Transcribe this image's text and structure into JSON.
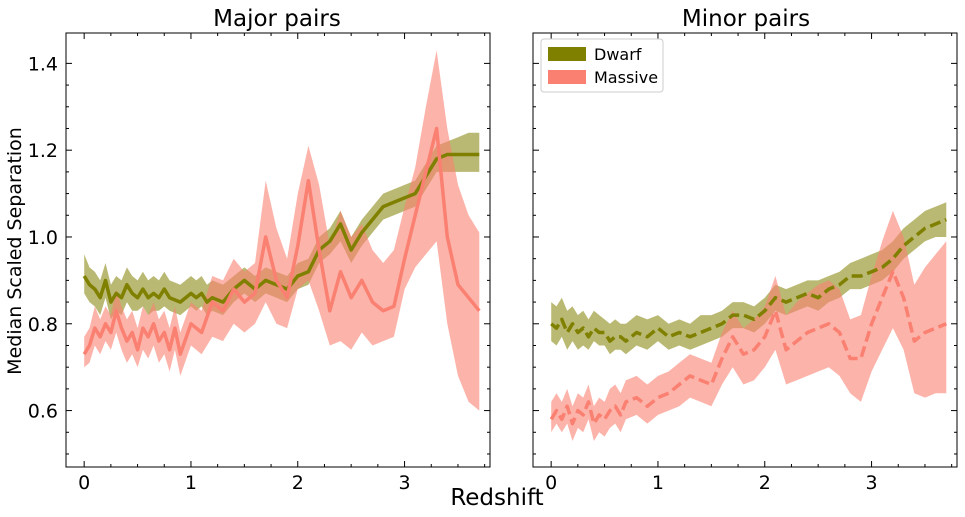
{
  "figure": {
    "xlabel_shared": "Redshift",
    "ylabel_shared": "Median Scaled Separation"
  },
  "colors": {
    "dwarf": "#808000",
    "massive": "#fa8072"
  },
  "legend": {
    "placement": "upper-left",
    "entries": [
      {
        "label": "Dwarf",
        "series": "dwarf"
      },
      {
        "label": "Massive",
        "series": "massive"
      }
    ]
  },
  "chart_data": [
    {
      "type": "line",
      "title": "Major pairs",
      "xlim": [
        -0.17,
        3.8
      ],
      "ylim": [
        0.47,
        1.47
      ],
      "xticks": [
        0,
        1,
        2,
        3
      ],
      "yticks": [
        0.6,
        0.8,
        1.0,
        1.2,
        1.4
      ],
      "line_style": "solid",
      "series": [
        {
          "name": "Dwarf",
          "key": "dwarf",
          "x": [
            0.0,
            0.05,
            0.1,
            0.15,
            0.2,
            0.25,
            0.3,
            0.35,
            0.4,
            0.45,
            0.5,
            0.55,
            0.6,
            0.65,
            0.7,
            0.75,
            0.8,
            0.9,
            1.0,
            1.05,
            1.1,
            1.15,
            1.2,
            1.3,
            1.4,
            1.5,
            1.6,
            1.7,
            1.8,
            1.9,
            2.0,
            2.1,
            2.2,
            2.3,
            2.4,
            2.5,
            2.6,
            2.7,
            2.8,
            2.9,
            3.0,
            3.1,
            3.2,
            3.3,
            3.4,
            3.5,
            3.6,
            3.7
          ],
          "y": [
            0.91,
            0.89,
            0.88,
            0.86,
            0.9,
            0.85,
            0.87,
            0.86,
            0.89,
            0.87,
            0.86,
            0.88,
            0.86,
            0.87,
            0.86,
            0.88,
            0.86,
            0.85,
            0.87,
            0.86,
            0.87,
            0.85,
            0.86,
            0.85,
            0.88,
            0.9,
            0.88,
            0.9,
            0.89,
            0.88,
            0.91,
            0.92,
            0.97,
            0.99,
            1.03,
            0.97,
            1.01,
            1.04,
            1.07,
            1.08,
            1.09,
            1.1,
            1.14,
            1.18,
            1.19,
            1.19,
            1.19,
            1.19
          ],
          "low": [
            0.87,
            0.85,
            0.84,
            0.82,
            0.86,
            0.81,
            0.83,
            0.82,
            0.85,
            0.83,
            0.83,
            0.84,
            0.82,
            0.83,
            0.83,
            0.84,
            0.83,
            0.82,
            0.84,
            0.83,
            0.84,
            0.82,
            0.83,
            0.82,
            0.85,
            0.87,
            0.85,
            0.87,
            0.86,
            0.85,
            0.88,
            0.89,
            0.94,
            0.96,
            0.99,
            0.94,
            0.98,
            1.01,
            1.04,
            1.05,
            1.06,
            1.07,
            1.11,
            1.15,
            1.15,
            1.15,
            1.15,
            1.15
          ],
          "high": [
            0.96,
            0.93,
            0.92,
            0.9,
            0.94,
            0.89,
            0.91,
            0.9,
            0.93,
            0.91,
            0.9,
            0.92,
            0.9,
            0.91,
            0.9,
            0.92,
            0.9,
            0.89,
            0.91,
            0.9,
            0.91,
            0.89,
            0.9,
            0.89,
            0.91,
            0.93,
            0.91,
            0.93,
            0.92,
            0.91,
            0.94,
            0.95,
            1.0,
            1.02,
            1.06,
            1.0,
            1.04,
            1.07,
            1.1,
            1.11,
            1.12,
            1.13,
            1.17,
            1.21,
            1.22,
            1.23,
            1.24,
            1.24
          ]
        },
        {
          "name": "Massive",
          "key": "massive",
          "x": [
            0.0,
            0.05,
            0.1,
            0.15,
            0.2,
            0.25,
            0.3,
            0.35,
            0.4,
            0.45,
            0.5,
            0.55,
            0.6,
            0.65,
            0.7,
            0.75,
            0.8,
            0.85,
            0.9,
            1.0,
            1.1,
            1.2,
            1.3,
            1.4,
            1.5,
            1.6,
            1.7,
            1.8,
            1.9,
            2.0,
            2.1,
            2.2,
            2.3,
            2.4,
            2.5,
            2.6,
            2.7,
            2.8,
            2.9,
            3.0,
            3.1,
            3.2,
            3.3,
            3.4,
            3.5,
            3.6,
            3.7
          ],
          "y": [
            0.73,
            0.75,
            0.79,
            0.77,
            0.8,
            0.78,
            0.83,
            0.79,
            0.76,
            0.78,
            0.74,
            0.79,
            0.77,
            0.8,
            0.76,
            0.78,
            0.74,
            0.79,
            0.73,
            0.8,
            0.78,
            0.85,
            0.83,
            0.88,
            0.85,
            0.87,
            1.0,
            0.9,
            0.86,
            0.98,
            1.13,
            0.97,
            0.83,
            0.92,
            0.86,
            0.9,
            0.85,
            0.83,
            0.84,
            0.95,
            1.05,
            1.15,
            1.25,
            1.0,
            0.89,
            0.86,
            0.83
          ],
          "low": [
            0.7,
            0.71,
            0.75,
            0.73,
            0.76,
            0.74,
            0.78,
            0.74,
            0.71,
            0.73,
            0.7,
            0.74,
            0.72,
            0.75,
            0.71,
            0.73,
            0.69,
            0.74,
            0.68,
            0.75,
            0.73,
            0.77,
            0.76,
            0.8,
            0.78,
            0.8,
            0.85,
            0.8,
            0.79,
            0.88,
            0.9,
            0.83,
            0.75,
            0.76,
            0.74,
            0.78,
            0.75,
            0.76,
            0.77,
            0.88,
            0.93,
            0.96,
            0.99,
            0.8,
            0.68,
            0.62,
            0.6
          ],
          "high": [
            0.77,
            0.79,
            0.84,
            0.81,
            0.84,
            0.82,
            0.88,
            0.84,
            0.81,
            0.83,
            0.79,
            0.84,
            0.82,
            0.85,
            0.81,
            0.83,
            0.79,
            0.84,
            0.78,
            0.85,
            0.83,
            0.91,
            0.9,
            0.95,
            0.92,
            0.94,
            1.13,
            1.02,
            0.95,
            1.1,
            1.21,
            1.12,
            0.98,
            1.06,
            1.0,
            1.03,
            0.97,
            0.94,
            0.97,
            1.07,
            1.16,
            1.3,
            1.43,
            1.25,
            1.12,
            1.05,
            1.01
          ]
        }
      ]
    },
    {
      "type": "line",
      "title": "Minor pairs",
      "xlim": [
        -0.17,
        3.8
      ],
      "ylim": [
        0.47,
        1.47
      ],
      "xticks": [
        0,
        1,
        2,
        3
      ],
      "yticks": [
        0.6,
        0.8,
        1.0,
        1.2,
        1.4
      ],
      "line_style": "dashed",
      "series": [
        {
          "name": "Dwarf",
          "key": "dwarf",
          "x": [
            0.0,
            0.05,
            0.1,
            0.15,
            0.2,
            0.25,
            0.3,
            0.35,
            0.4,
            0.45,
            0.5,
            0.55,
            0.6,
            0.65,
            0.7,
            0.8,
            0.9,
            1.0,
            1.1,
            1.2,
            1.3,
            1.4,
            1.5,
            1.6,
            1.7,
            1.8,
            1.9,
            2.0,
            2.1,
            2.2,
            2.3,
            2.4,
            2.5,
            2.6,
            2.7,
            2.8,
            2.9,
            3.0,
            3.1,
            3.2,
            3.3,
            3.4,
            3.5,
            3.6,
            3.7
          ],
          "y": [
            0.8,
            0.79,
            0.81,
            0.78,
            0.8,
            0.78,
            0.79,
            0.77,
            0.79,
            0.78,
            0.78,
            0.76,
            0.77,
            0.77,
            0.76,
            0.78,
            0.77,
            0.79,
            0.77,
            0.78,
            0.77,
            0.78,
            0.79,
            0.8,
            0.82,
            0.82,
            0.81,
            0.83,
            0.86,
            0.85,
            0.86,
            0.87,
            0.86,
            0.88,
            0.89,
            0.91,
            0.91,
            0.92,
            0.93,
            0.95,
            0.98,
            1.0,
            1.02,
            1.03,
            1.04
          ],
          "low": [
            0.76,
            0.75,
            0.77,
            0.74,
            0.76,
            0.74,
            0.75,
            0.74,
            0.76,
            0.75,
            0.75,
            0.73,
            0.74,
            0.74,
            0.73,
            0.75,
            0.74,
            0.76,
            0.74,
            0.75,
            0.74,
            0.75,
            0.76,
            0.77,
            0.79,
            0.79,
            0.78,
            0.8,
            0.83,
            0.82,
            0.83,
            0.84,
            0.83,
            0.85,
            0.86,
            0.88,
            0.88,
            0.89,
            0.9,
            0.92,
            0.95,
            0.97,
            0.99,
            1.0,
            1.0
          ],
          "high": [
            0.85,
            0.84,
            0.86,
            0.83,
            0.84,
            0.82,
            0.83,
            0.81,
            0.83,
            0.82,
            0.81,
            0.8,
            0.81,
            0.8,
            0.8,
            0.82,
            0.81,
            0.82,
            0.8,
            0.81,
            0.8,
            0.82,
            0.82,
            0.83,
            0.85,
            0.85,
            0.84,
            0.86,
            0.89,
            0.88,
            0.89,
            0.9,
            0.9,
            0.91,
            0.92,
            0.94,
            0.95,
            0.96,
            0.97,
            0.99,
            1.02,
            1.04,
            1.06,
            1.07,
            1.08
          ]
        },
        {
          "name": "Massive",
          "key": "massive",
          "x": [
            0.0,
            0.05,
            0.1,
            0.15,
            0.2,
            0.25,
            0.3,
            0.35,
            0.4,
            0.45,
            0.5,
            0.55,
            0.6,
            0.65,
            0.7,
            0.8,
            0.9,
            1.0,
            1.1,
            1.2,
            1.3,
            1.4,
            1.5,
            1.6,
            1.7,
            1.8,
            1.9,
            2.0,
            2.1,
            2.2,
            2.3,
            2.4,
            2.5,
            2.6,
            2.7,
            2.8,
            2.9,
            3.0,
            3.1,
            3.2,
            3.3,
            3.4,
            3.5,
            3.6,
            3.7
          ],
          "y": [
            0.58,
            0.6,
            0.58,
            0.61,
            0.57,
            0.6,
            0.59,
            0.62,
            0.57,
            0.59,
            0.58,
            0.6,
            0.61,
            0.59,
            0.62,
            0.63,
            0.61,
            0.63,
            0.64,
            0.66,
            0.68,
            0.67,
            0.66,
            0.72,
            0.77,
            0.73,
            0.74,
            0.77,
            0.83,
            0.74,
            0.76,
            0.78,
            0.79,
            0.8,
            0.78,
            0.72,
            0.72,
            0.8,
            0.86,
            0.92,
            0.86,
            0.76,
            0.78,
            0.79,
            0.8
          ],
          "low": [
            0.55,
            0.57,
            0.55,
            0.57,
            0.53,
            0.56,
            0.55,
            0.58,
            0.53,
            0.55,
            0.54,
            0.56,
            0.57,
            0.55,
            0.58,
            0.59,
            0.57,
            0.59,
            0.6,
            0.61,
            0.63,
            0.62,
            0.61,
            0.66,
            0.7,
            0.66,
            0.67,
            0.7,
            0.74,
            0.66,
            0.67,
            0.68,
            0.69,
            0.7,
            0.68,
            0.64,
            0.62,
            0.69,
            0.74,
            0.79,
            0.74,
            0.64,
            0.63,
            0.64,
            0.64
          ],
          "high": [
            0.62,
            0.64,
            0.62,
            0.65,
            0.61,
            0.64,
            0.63,
            0.66,
            0.61,
            0.63,
            0.62,
            0.65,
            0.66,
            0.64,
            0.67,
            0.68,
            0.66,
            0.68,
            0.69,
            0.71,
            0.73,
            0.72,
            0.71,
            0.78,
            0.83,
            0.79,
            0.81,
            0.84,
            0.91,
            0.82,
            0.85,
            0.87,
            0.89,
            0.9,
            0.88,
            0.81,
            0.82,
            0.91,
            0.99,
            1.06,
            1.0,
            0.89,
            0.93,
            0.96,
            0.99
          ]
        }
      ]
    }
  ]
}
